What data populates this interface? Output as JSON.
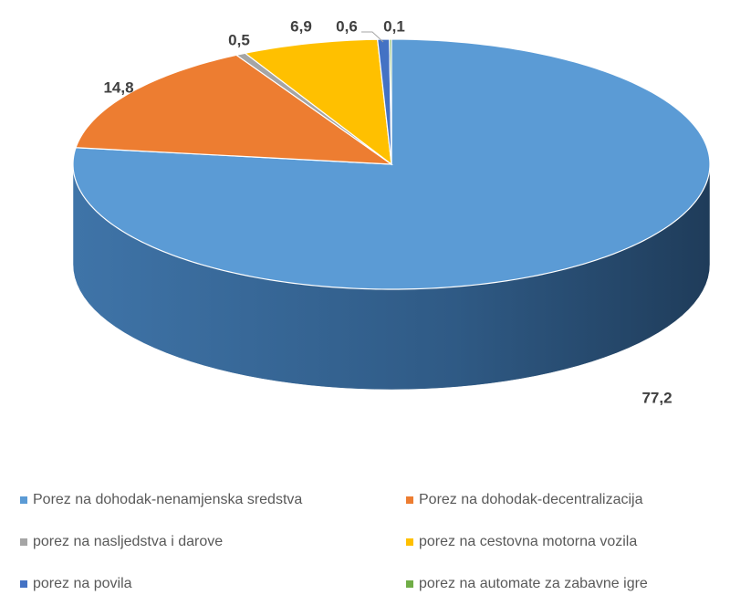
{
  "chart_data": {
    "type": "pie",
    "categories": [
      "Porez na dohodak-nenamjenska sredstva",
      "Porez na dohodak-decentralizacija",
      "porez na nasljedstva i darove",
      "porez na cestovna motorna vozila",
      "porez na povila",
      "porez na automate za zabavne igre"
    ],
    "values": [
      77.2,
      14.8,
      0.5,
      6.9,
      0.6,
      0.1
    ],
    "value_labels": [
      "77,2",
      "14,8",
      "0,5",
      "6,9",
      "0,6",
      "0,1"
    ],
    "colors": [
      "#5b9bd5",
      "#ed7d31",
      "#a5a5a5",
      "#ffc000",
      "#4472c4",
      "#70ad47"
    ],
    "legend": "bottom"
  }
}
